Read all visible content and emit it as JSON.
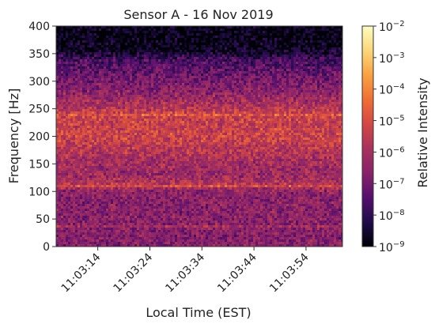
{
  "chart_data": {
    "type": "heatmap",
    "title": "Sensor A - 16 Nov 2019",
    "xlabel": "Local Time (EST)",
    "ylabel": "Frequency [Hz]",
    "x_ticks": [
      "11:03:14",
      "11:03:24",
      "11:03:34",
      "11:03:44",
      "11:03:54"
    ],
    "x_tick_seconds": [
      14,
      24,
      34,
      44,
      54
    ],
    "x_range_seconds": [
      6,
      61
    ],
    "ylim": [
      0,
      400
    ],
    "y_ticks": [
      0,
      50,
      100,
      150,
      200,
      250,
      300,
      350,
      400
    ],
    "colorbar": {
      "label": "Relative Intensity",
      "scale": "log",
      "range": [
        1e-09,
        0.01
      ],
      "ticks": [
        {
          "base": "10",
          "exp": "−2",
          "value": 0.01
        },
        {
          "base": "10",
          "exp": "−3",
          "value": 0.001
        },
        {
          "base": "10",
          "exp": "−4",
          "value": 0.0001
        },
        {
          "base": "10",
          "exp": "−5",
          "value": 1e-05
        },
        {
          "base": "10",
          "exp": "−6",
          "value": 1e-06
        },
        {
          "base": "10",
          "exp": "−7",
          "value": 1e-07
        },
        {
          "base": "10",
          "exp": "−8",
          "value": 1e-08
        },
        {
          "base": "10",
          "exp": "−9",
          "value": 1e-09
        }
      ],
      "colors": [
        "#000004",
        "#1f0c48",
        "#550f6d",
        "#88226a",
        "#a8325c",
        "#d34743",
        "#f06e34",
        "#f9a242",
        "#fad77a",
        "#fcfdbf"
      ]
    },
    "intensity_profile": {
      "frequencies_hz": [
        0,
        20,
        40,
        60,
        80,
        100,
        110,
        130,
        150,
        170,
        190,
        205,
        220,
        240,
        260,
        280,
        300,
        320,
        340,
        350,
        360,
        380,
        400
      ],
      "log10_intensity": [
        -6.6,
        -6.7,
        -6.5,
        -6.6,
        -6.6,
        -6.5,
        -5.6,
        -6.3,
        -6.1,
        -5.8,
        -5.4,
        -5.2,
        -5.4,
        -5.3,
        -6.0,
        -6.5,
        -6.9,
        -7.3,
        -7.7,
        -8.4,
        -8.8,
        -8.9,
        -8.9
      ]
    },
    "bright_bands_hz": [
      110,
      240,
      35
    ],
    "grid": false
  }
}
